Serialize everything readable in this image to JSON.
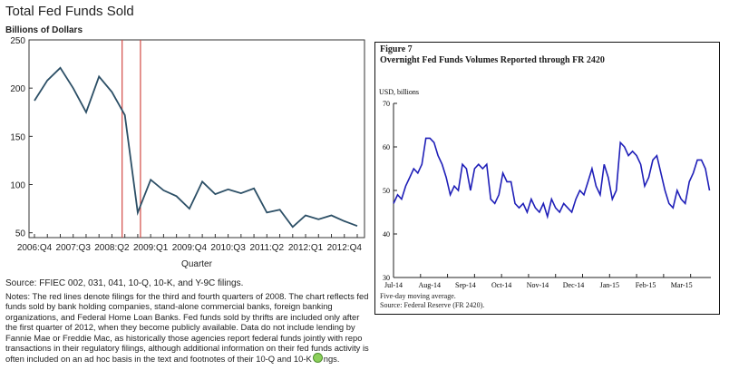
{
  "left_chart": {
    "title": "Total Fed Funds Sold",
    "unit_label": "Billions of Dollars",
    "source": "Source: FFIEC 002, 031, 041, 10-Q, 10-K, and Y-9C filings.",
    "notes": "Notes: The red lines denote filings for the third and fourth quarters of 2008. The chart reflects fed funds sold by bank holding companies, stand-alone commercial banks, foreign banking organizations, and Federal Home Loan Banks. Fed funds sold by thrifts are included only after the first quarter of 2012, when they become publicly available. Data do not include lending by Fannie Mae or Freddie Mac, as historically those agencies report federal funds jointly with repo transactions in their regulatory filings, although additional information on their fed funds activity is often included on an ad hoc basis in the text and footnotes of their 10-Q and 10-K",
    "notes_tail": "ngs.",
    "line_color": "#2c4f66",
    "marker_color": "#d24b45"
  },
  "chart_data": [
    {
      "type": "line",
      "title": "Total Fed Funds Sold",
      "ylabel": "Billions of Dollars",
      "xlabel": "Quarter",
      "ylim": [
        45,
        250
      ],
      "yticks": [
        50,
        100,
        150,
        200,
        250
      ],
      "categories": [
        "2006:Q4",
        "2007:Q1",
        "2007:Q2",
        "2007:Q3",
        "2007:Q4",
        "2008:Q1",
        "2008:Q2",
        "2008:Q3",
        "2008:Q4",
        "2009:Q1",
        "2009:Q2",
        "2009:Q3",
        "2009:Q4",
        "2010:Q1",
        "2010:Q2",
        "2010:Q3",
        "2010:Q4",
        "2011:Q1",
        "2011:Q2",
        "2011:Q3",
        "2011:Q4",
        "2012:Q1",
        "2012:Q2",
        "2012:Q3",
        "2012:Q4",
        "2013:Q1"
      ],
      "tick_labels": [
        "2006:Q4",
        "2007:Q3",
        "2008:Q2",
        "2009:Q1",
        "2009:Q4",
        "2010:Q3",
        "2011:Q2",
        "2012:Q1",
        "2012:Q4"
      ],
      "values": [
        187,
        208,
        221,
        200,
        175,
        212,
        196,
        172,
        71,
        105,
        94,
        88,
        75,
        103,
        90,
        95,
        91,
        96,
        71,
        74,
        56,
        68,
        64,
        68,
        62,
        57
      ],
      "markers": [
        "2008:Q3",
        "2008:Q4"
      ],
      "grid": false
    },
    {
      "type": "line",
      "title": "Overnight Fed Funds Volumes Reported through FR 2420",
      "ylabel": "USD, billions",
      "ylim": [
        30,
        70
      ],
      "yticks": [
        30,
        40,
        50,
        60,
        70
      ],
      "xlim": [
        0,
        23.5
      ],
      "xticks": [
        0,
        2,
        4,
        6,
        8,
        10,
        12,
        14,
        16,
        18,
        20,
        22
      ],
      "tick_labels": [
        "Jul-14",
        "Aug-14",
        "Sep-14",
        "Oct-14",
        "Nov-14",
        "Dec-14",
        "Jan-15",
        "Feb-15",
        "Mar-15"
      ],
      "tick_positions": [
        0,
        2.67,
        5.33,
        8,
        10.67,
        13.33,
        16,
        18.67,
        21.33
      ],
      "x": [
        0,
        0.3,
        0.6,
        0.9,
        1.2,
        1.5,
        1.8,
        2.1,
        2.4,
        2.7,
        3.0,
        3.3,
        3.6,
        3.9,
        4.2,
        4.5,
        4.8,
        5.1,
        5.4,
        5.7,
        6.0,
        6.3,
        6.6,
        6.9,
        7.2,
        7.5,
        7.8,
        8.1,
        8.4,
        8.7,
        9.0,
        9.3,
        9.6,
        9.9,
        10.2,
        10.5,
        10.8,
        11.1,
        11.4,
        11.7,
        12.0,
        12.3,
        12.6,
        12.9,
        13.2,
        13.5,
        13.8,
        14.1,
        14.4,
        14.7,
        15.0,
        15.3,
        15.6,
        15.9,
        16.2,
        16.5,
        16.8,
        17.1,
        17.4,
        17.7,
        18.0,
        18.3,
        18.6,
        18.9,
        19.2,
        19.5,
        19.8,
        20.1,
        20.4,
        20.7,
        21.0,
        21.3,
        21.6,
        21.9,
        22.2,
        22.5,
        22.8,
        23.1,
        23.4
      ],
      "values": [
        47,
        49,
        48,
        51,
        53,
        55,
        54,
        56,
        62,
        62,
        61,
        58,
        56,
        53,
        49,
        51,
        50,
        56,
        55,
        50,
        55,
        56,
        55,
        56,
        48,
        47,
        49,
        54,
        52,
        52,
        47,
        46,
        47,
        45,
        48,
        46,
        45,
        47,
        44,
        48,
        46,
        45,
        47,
        46,
        45,
        48,
        50,
        49,
        52,
        55,
        51,
        49,
        56,
        53,
        48,
        50,
        61,
        60,
        58,
        59,
        58,
        56,
        51,
        53,
        57,
        58,
        54,
        50,
        47,
        46,
        50,
        48,
        47,
        52,
        54,
        57,
        57,
        55,
        50
      ],
      "notes": [
        "Five-day moving average.",
        "Source: Federal Reserve (FR 2420)."
      ],
      "grid": false
    }
  ],
  "right_chart": {
    "figure_label": "Figure 7",
    "line_color": "#1f1fb8"
  }
}
